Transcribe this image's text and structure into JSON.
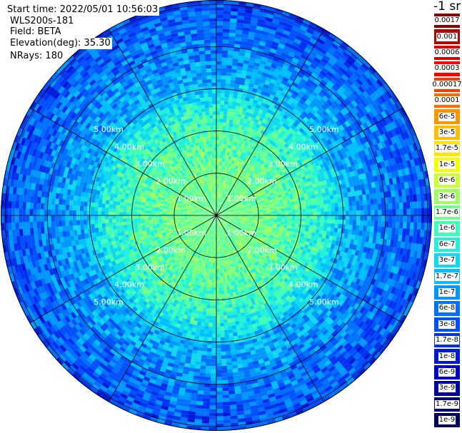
{
  "header": {
    "start_time": "Start time: 2022/05/01 10:56:03",
    "instrument": "WLS200s-181",
    "field": "Field: BETA",
    "elevation": "Elevation(deg): 35.30",
    "nrays": "NRays: 180"
  },
  "colorbar": {
    "units": "-1 sr",
    "levels": [
      {
        "label": "0.0017",
        "color": "#8b0000"
      },
      {
        "label": "0.001",
        "color": "#b40000"
      },
      {
        "label": "0.0006",
        "color": "#d80000"
      },
      {
        "label": "0.0003",
        "color": "#ff0000"
      },
      {
        "label": "0.00017",
        "color": "#ff3a00"
      },
      {
        "label": "0.0001",
        "color": "#ff6a00"
      },
      {
        "label": "6e-5",
        "color": "#ff9400"
      },
      {
        "label": "3e-5",
        "color": "#ffbf00"
      },
      {
        "label": "1.7e-5",
        "color": "#ffe600"
      },
      {
        "label": "1e-5",
        "color": "#f4ff00"
      },
      {
        "label": "6e-6",
        "color": "#ccff33"
      },
      {
        "label": "3e-6",
        "color": "#a0ff60"
      },
      {
        "label": "1.7e-6",
        "color": "#70ff8c"
      },
      {
        "label": "1e-6",
        "color": "#40ffb8"
      },
      {
        "label": "6e-7",
        "color": "#22f0d8"
      },
      {
        "label": "3e-7",
        "color": "#10d8f0"
      },
      {
        "label": "1.7e-7",
        "color": "#00bfff"
      },
      {
        "label": "1e-7",
        "color": "#0098ff"
      },
      {
        "label": "6e-8",
        "color": "#0070ff"
      },
      {
        "label": "3e-8",
        "color": "#0050ff"
      },
      {
        "label": "1.7e-8",
        "color": "#0030f0"
      },
      {
        "label": "1e-8",
        "color": "#0018d8"
      },
      {
        "label": "6e-9",
        "color": "#0000c0"
      },
      {
        "label": "3e-9",
        "color": "#0000a0"
      },
      {
        "label": "1.7e-9",
        "color": "#000080"
      },
      {
        "label": "1e-9",
        "color": "#000060"
      }
    ]
  },
  "chart_data": {
    "type": "heatmap",
    "projection": "polar",
    "title": "",
    "field": "BETA",
    "elevation_deg": 35.3,
    "nrays": 180,
    "range_rings_km": [
      1,
      2,
      3,
      4,
      5
    ],
    "max_range_km": 5.0,
    "ring_labels": [
      "1.00km",
      "2.00km",
      "3.00km",
      "4.00km",
      "5.00km"
    ],
    "spokes_deg": [
      0,
      30,
      60,
      90,
      120,
      150,
      180,
      210,
      240,
      270,
      300,
      330
    ],
    "radial_profile": [
      {
        "range_km": 0.0,
        "beta": 1.7e-06
      },
      {
        "range_km": 1.0,
        "beta": 1.7e-06
      },
      {
        "range_km": 2.0,
        "beta": 1e-06
      },
      {
        "range_km": 2.5,
        "beta": 6e-07
      },
      {
        "range_km": 3.0,
        "beta": 1.7e-07
      },
      {
        "range_km": 4.0,
        "beta": 6e-08
      },
      {
        "range_km": 5.0,
        "beta": 3e-08
      }
    ],
    "colors": {
      "background": "#ffffff",
      "ring": "#000000",
      "label_text": "#ffffff"
    }
  }
}
